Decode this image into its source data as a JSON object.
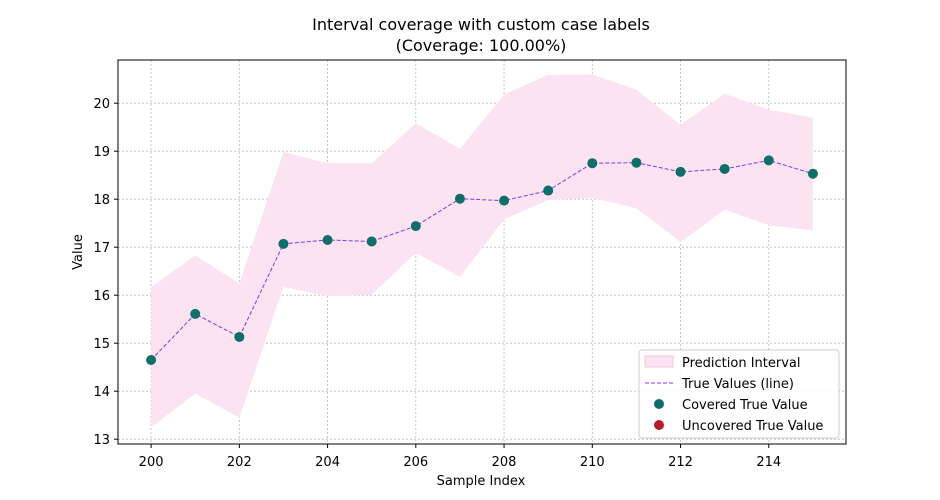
{
  "chart_data": {
    "type": "line",
    "title": "Interval coverage with custom case labels",
    "subtitle": "(Coverage: 100.00%)",
    "xlabel": "Sample Index",
    "ylabel": "Value",
    "xlim": [
      199.25,
      215.75
    ],
    "ylim": [
      12.9,
      20.9
    ],
    "x_ticks": [
      200,
      202,
      204,
      206,
      208,
      210,
      212,
      214
    ],
    "y_ticks": [
      13,
      14,
      15,
      16,
      17,
      18,
      19,
      20
    ],
    "grid": true,
    "legend_position": "lower-right",
    "x": [
      200,
      201,
      202,
      203,
      204,
      205,
      206,
      207,
      208,
      209,
      210,
      211,
      212,
      213,
      214,
      215
    ],
    "series": [
      {
        "name": "True Values (line)",
        "kind": "line",
        "values": [
          14.65,
          15.61,
          15.13,
          17.07,
          17.15,
          17.12,
          17.44,
          18.01,
          17.97,
          18.18,
          18.75,
          18.76,
          18.57,
          18.63,
          18.81,
          18.53
        ],
        "color": "#7c3aed"
      },
      {
        "name": "Prediction Interval",
        "kind": "band",
        "lower": [
          13.25,
          13.95,
          13.45,
          16.17,
          15.98,
          16.01,
          16.88,
          16.38,
          17.58,
          17.98,
          18.03,
          17.81,
          17.11,
          17.78,
          17.46,
          17.35
        ],
        "upper": [
          16.17,
          16.83,
          16.25,
          18.98,
          18.75,
          18.75,
          19.58,
          19.05,
          20.18,
          20.59,
          20.6,
          20.28,
          19.55,
          20.2,
          19.86,
          19.7
        ],
        "color": "#fbe3f1"
      },
      {
        "name": "Covered True Value",
        "kind": "scatter",
        "color": "#0f6e6a"
      },
      {
        "name": "Uncovered True Value",
        "kind": "scatter",
        "color": "#b71c2c"
      }
    ]
  }
}
